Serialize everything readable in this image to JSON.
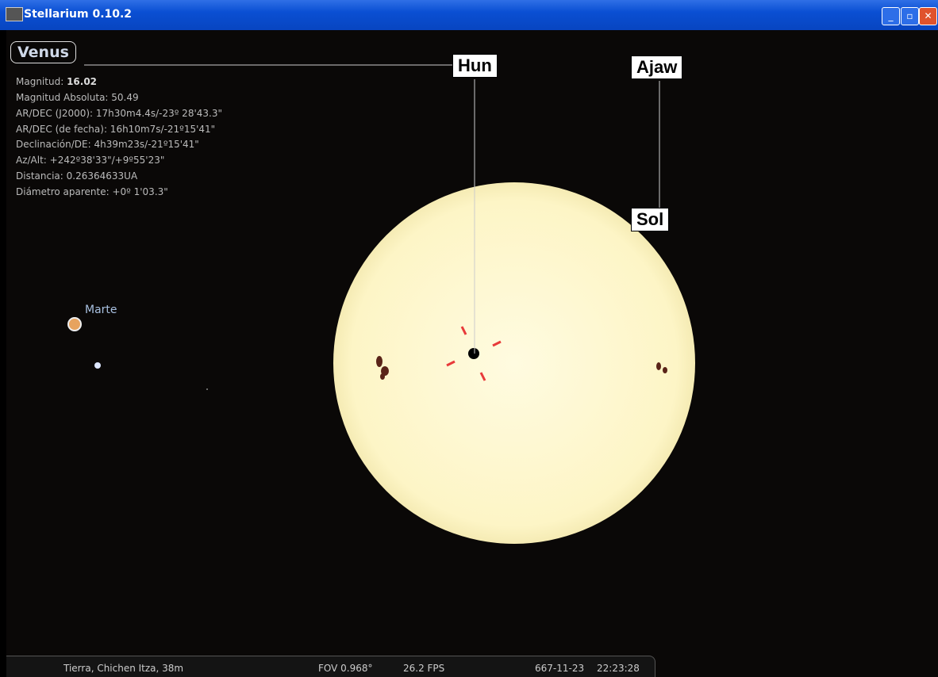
{
  "window": {
    "title": "Stellarium 0.10.2"
  },
  "object": {
    "name": "Venus",
    "magnitude": {
      "label": "Magnitud:",
      "value": "16.02"
    },
    "info": [
      "Magnitud Absoluta: 50.49",
      "AR/DEC (J2000): 17h30m4.4s/-23º 28'43.3\"",
      "AR/DEC (de fecha): 16h10m7s/-21º15'41\"",
      "Declinación/DE: 4h39m23s/-21º15'41\"",
      "Az/Alt: +242º38'33\"/+9º55'23\"",
      "Distancia: 0.26364633UA",
      "Diámetro aparente: +0º 1'03.3\""
    ]
  },
  "labels": {
    "hun": "Hun",
    "ajaw": "Ajaw",
    "sol": "Sol",
    "marte": "Marte"
  },
  "status": {
    "location": "Tierra, Chichen Itza, 38m",
    "fov": "FOV 0.968°",
    "fps": "26.2 FPS",
    "date": "667-11-23",
    "time": "22:23:28"
  }
}
